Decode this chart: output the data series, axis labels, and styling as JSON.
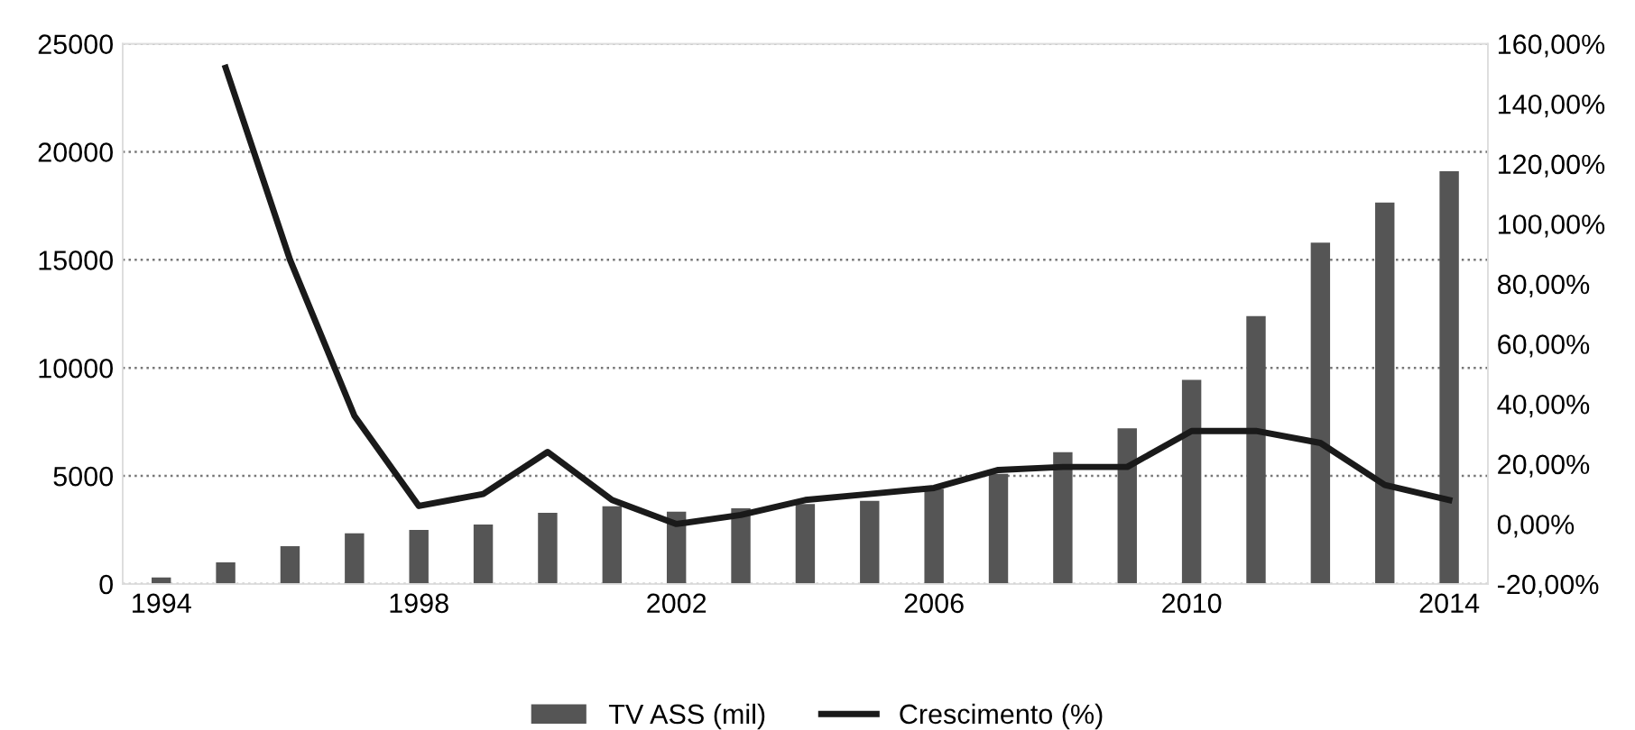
{
  "chart_data": {
    "type": "bar",
    "categories": [
      "1994",
      null,
      null,
      null,
      "1998",
      null,
      null,
      null,
      "2002",
      null,
      null,
      null,
      "2006",
      null,
      null,
      null,
      "2010",
      null,
      null,
      null,
      "2014"
    ],
    "series": [
      {
        "name": "TV ASS (mil)",
        "color": "#555555",
        "values": [
          300,
          1000,
          1750,
          2350,
          2500,
          2750,
          3300,
          3600,
          3350,
          3500,
          3700,
          3850,
          4400,
          5100,
          6100,
          7200,
          9450,
          12400,
          15800,
          17650,
          19100
        ]
      },
      {
        "name": "Crescimento (%)",
        "type": "line",
        "axis": "y2",
        "color": "#1a1a1a",
        "values": [
          null,
          152,
          88,
          36,
          6,
          10,
          24,
          8,
          0,
          3,
          8,
          10,
          12,
          18,
          19,
          19,
          31,
          31,
          27,
          13,
          8
        ]
      }
    ],
    "ylim": [
      0,
      25000
    ],
    "yticks": [
      0,
      5000,
      10000,
      15000,
      20000,
      25000
    ],
    "y2lim": [
      -20,
      160
    ],
    "y2ticks": [
      {
        "value": -20,
        "label": "-20,00%"
      },
      {
        "value": 0,
        "label": "0,00%"
      },
      {
        "value": 20,
        "label": "20,00%"
      },
      {
        "value": 40,
        "label": "40,00%"
      },
      {
        "value": 60,
        "label": "60,00%"
      },
      {
        "value": 80,
        "label": "80,00%"
      },
      {
        "value": 100,
        "label": "100,00%"
      },
      {
        "value": 120,
        "label": "120,00%"
      },
      {
        "value": 140,
        "label": "140,00%"
      },
      {
        "value": 160,
        "label": "160,00%"
      }
    ],
    "grid": "y",
    "legend": "bottom",
    "marker": "none",
    "line_style": "solid"
  }
}
